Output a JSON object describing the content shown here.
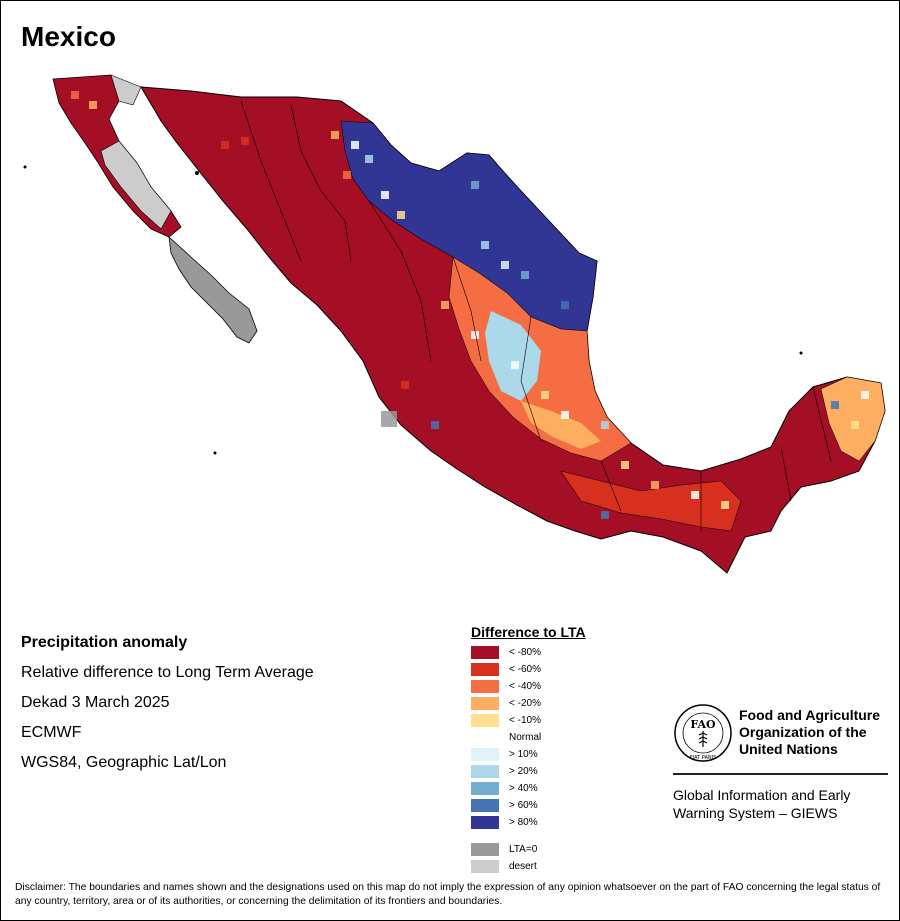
{
  "title": "Mexico",
  "info": {
    "heading": "Precipitation anomaly",
    "line1": "Relative difference to Long Term Average",
    "line2": "Dekad 3 March 2025",
    "line3": "ECMWF",
    "line4": "WGS84, Geographic Lat/Lon"
  },
  "legend": {
    "title": "Difference to LTA",
    "items": [
      {
        "label": "< -80%",
        "color": "#a50f26"
      },
      {
        "label": "< -60%",
        "color": "#d7301f"
      },
      {
        "label": "< -40%",
        "color": "#f46d43"
      },
      {
        "label": "< -20%",
        "color": "#fdae61"
      },
      {
        "label": "< -10%",
        "color": "#fee090"
      },
      {
        "label": "Normal",
        "color": "#ffffff"
      },
      {
        "label": "> 10%",
        "color": "#e0f3f8"
      },
      {
        "label": "> 20%",
        "color": "#abd9e9"
      },
      {
        "label": "> 40%",
        "color": "#74add1"
      },
      {
        "label": "> 60%",
        "color": "#4575b4"
      },
      {
        "label": "> 80%",
        "color": "#313695"
      }
    ],
    "extra": [
      {
        "label": "LTA=0",
        "color": "#999999"
      },
      {
        "label": "desert",
        "color": "#cccccc"
      }
    ]
  },
  "organization": {
    "name": "Food and Agriculture Organization of the United Nations",
    "logo_text": "FIAT PANIS",
    "system": "Global Information and Early Warning System – GIEWS"
  },
  "disclaimer": "Disclaimer: The boundaries and names shown and the designations used on this map do not imply the expression of any opinion whatsoever on the part of FAO concerning the legal status of any country, territory, area or of its authorities, or concerning the delimitation of its frontiers and boundaries."
}
